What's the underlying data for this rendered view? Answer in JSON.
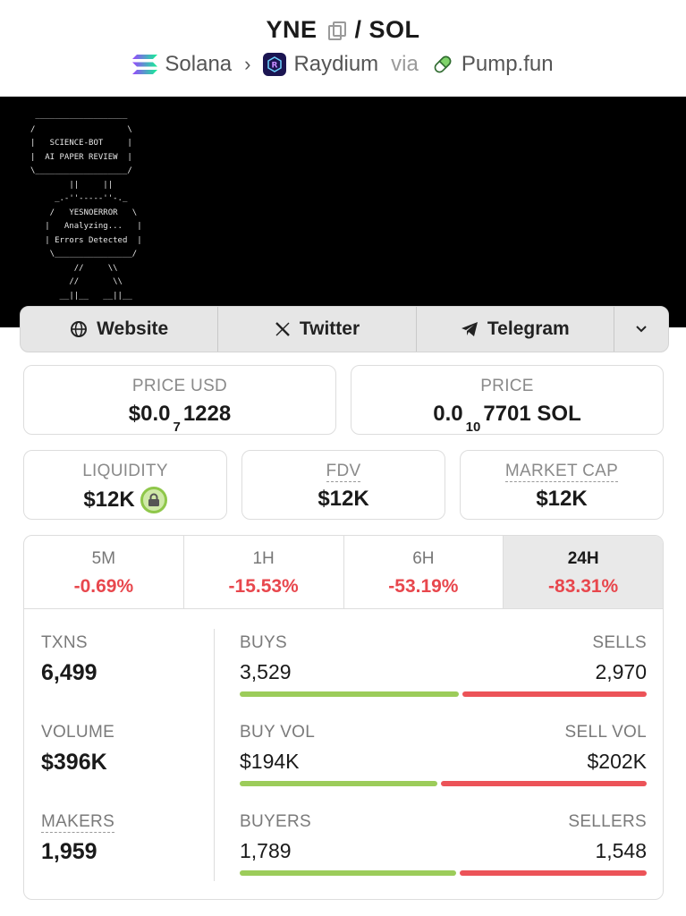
{
  "header": {
    "base": "YNE",
    "separator": "/",
    "quote": "SOL",
    "chain": "Solana",
    "dex": "Raydium",
    "via": "via",
    "launchpad": "Pump.fun"
  },
  "banner": {
    "ascii": " ___________________\n/                   \\\n|   SCIENCE-BOT     |\n|  AI PAPER REVIEW  |\n\\___________________/\n        ||     ||\n     _.-''-----''-._\n    /   YESNOERROR   \\\n   |   Analyzing...   |\n   | Errors Detected  |\n    \\________________/\n         //     \\\\\n        //       \\\\\n      __||__   __||__"
  },
  "social": {
    "website": "Website",
    "twitter": "Twitter",
    "telegram": "Telegram"
  },
  "prices": {
    "usd_label": "PRICE USD",
    "usd_prefix": "$0.0",
    "usd_sub": "7",
    "usd_suffix": "1228",
    "native_label": "PRICE",
    "native_prefix": "0.0",
    "native_sub": "10",
    "native_suffix": "7701 SOL"
  },
  "metrics": {
    "liquidity_label": "LIQUIDITY",
    "liquidity_value": "$12K",
    "fdv_label": "FDV",
    "fdv_value": "$12K",
    "mcap_label": "MARKET CAP",
    "mcap_value": "$12K"
  },
  "tabs": [
    {
      "label": "5M",
      "value": "-0.69%"
    },
    {
      "label": "1H",
      "value": "-15.53%"
    },
    {
      "label": "6H",
      "value": "-53.19%"
    },
    {
      "label": "24H",
      "value": "-83.31%"
    }
  ],
  "stats": {
    "txns_label": "TXNS",
    "txns_value": "6,499",
    "volume_label": "VOLUME",
    "volume_value": "$396K",
    "makers_label": "MAKERS",
    "makers_value": "1,959",
    "buys_label": "BUYS",
    "buys_value": "3,529",
    "sells_label": "SELLS",
    "sells_value": "2,970",
    "buyvol_label": "BUY VOL",
    "buyvol_value": "$194K",
    "sellvol_label": "SELL VOL",
    "sellvol_value": "$202K",
    "buyers_label": "BUYERS",
    "buyers_value": "1,789",
    "sellers_label": "SELLERS",
    "sellers_value": "1,548",
    "buys_ratio": 0.543,
    "buyvol_ratio": 0.49,
    "buyers_ratio": 0.536
  },
  "colors": {
    "positive": "#9ccc5a",
    "negative": "#e8474d"
  }
}
